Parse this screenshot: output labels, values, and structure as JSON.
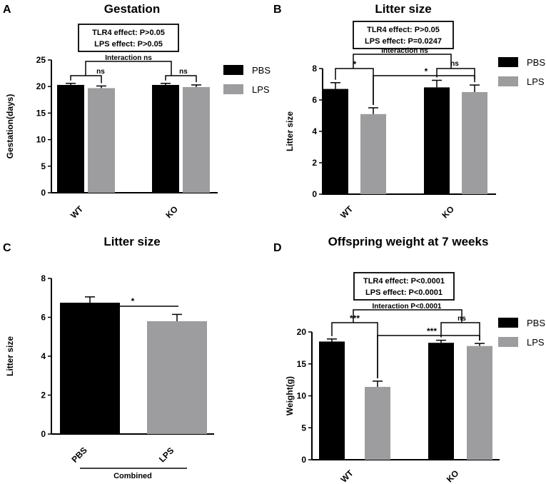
{
  "colors": {
    "PBS": "#000000",
    "LPS": "#9d9da0"
  },
  "chart_data": [
    {
      "panel": "A",
      "type": "bar",
      "title": "Gestation",
      "xlabel": "",
      "ylabel": "Gestation(days)",
      "ylim": [
        0,
        25
      ],
      "yticks": [
        "0",
        "5",
        "10",
        "15",
        "20",
        "25"
      ],
      "categories": [
        "WT",
        "KO"
      ],
      "series": [
        {
          "name": "PBS",
          "values": [
            20.3,
            20.3
          ],
          "errors": [
            0.3,
            0.3
          ]
        },
        {
          "name": "LPS",
          "values": [
            19.7,
            19.9
          ],
          "errors": [
            0.4,
            0.4
          ]
        }
      ],
      "stats_box": [
        "TLR4 effect: P>0.05",
        "LPS  effect: P>0.05"
      ],
      "annotations": {
        "interaction": "Interaction ns",
        "group_marks": [
          "ns",
          "ns"
        ]
      },
      "legend": "right"
    },
    {
      "panel": "B",
      "type": "bar",
      "title": "Litter size",
      "xlabel": "",
      "ylabel": "Litter size",
      "ylim": [
        0,
        8
      ],
      "yticks": [
        "0",
        "2",
        "4",
        "6",
        "8"
      ],
      "categories": [
        "WT",
        "KO"
      ],
      "series": [
        {
          "name": "PBS",
          "values": [
            6.7,
            6.8
          ],
          "errors": [
            0.4,
            0.45
          ]
        },
        {
          "name": "LPS",
          "values": [
            5.1,
            6.5
          ],
          "errors": [
            0.4,
            0.45
          ]
        }
      ],
      "stats_box": [
        "TLR4 effect: P>0.05",
        "LPS  effect: P=0.0247"
      ],
      "annotations": {
        "interaction": "Interaction ns",
        "group_marks": [
          "*",
          "ns"
        ],
        "cross_mark": "*"
      },
      "legend": "right"
    },
    {
      "panel": "C",
      "type": "bar",
      "title": "Litter size",
      "xlabel": "Combined",
      "ylabel": "Litter size",
      "ylim": [
        0,
        8
      ],
      "yticks": [
        "0",
        "2",
        "4",
        "6",
        "8"
      ],
      "categories": [
        "PBS",
        "LPS"
      ],
      "values": [
        6.75,
        5.8
      ],
      "errors": [
        0.3,
        0.35
      ],
      "annotations": {
        "mark": "*"
      }
    },
    {
      "panel": "D",
      "type": "bar",
      "title": "Offspring weight at 7 weeks",
      "xlabel": "",
      "ylabel": "Weight(g)",
      "ylim": [
        0,
        20
      ],
      "yticks": [
        "0",
        "5",
        "10",
        "15",
        "20"
      ],
      "categories": [
        "WT",
        "KO"
      ],
      "series": [
        {
          "name": "PBS",
          "values": [
            18.5,
            18.3
          ],
          "errors": [
            0.4,
            0.4
          ]
        },
        {
          "name": "LPS",
          "values": [
            11.4,
            17.8
          ],
          "errors": [
            0.9,
            0.4
          ]
        }
      ],
      "stats_box": [
        "TLR4 effect: P<0.0001",
        "LPS  effect: P<0.0001"
      ],
      "annotations": {
        "interaction": "Interaction P<0.0001",
        "group_marks": [
          "***",
          "ns"
        ],
        "cross_mark": "***"
      },
      "legend": "right"
    }
  ]
}
